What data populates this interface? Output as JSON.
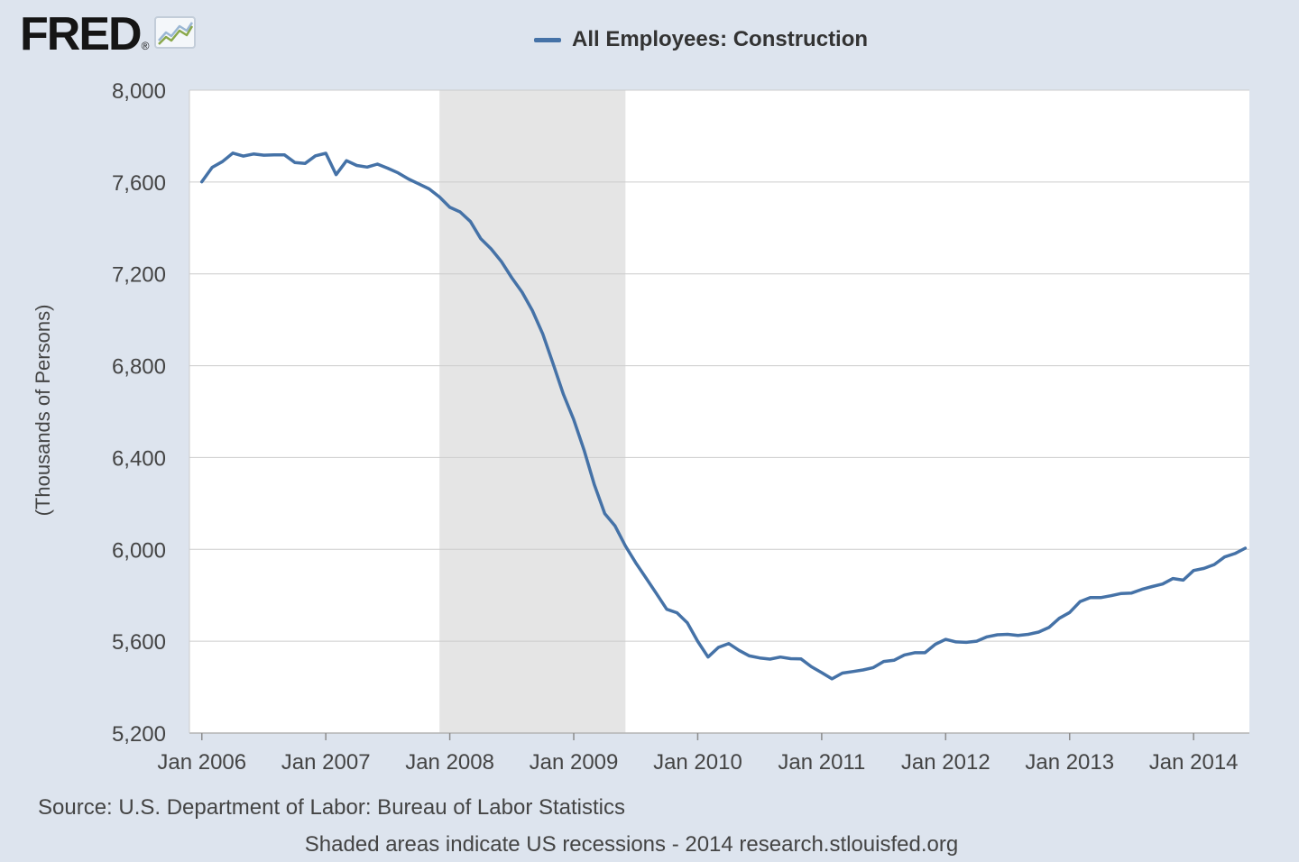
{
  "header": {
    "logo_text": "FRED",
    "logo_reg": "®",
    "logo_icon": "fred-sparkline-icon"
  },
  "legend": {
    "label": "All Employees: Construction",
    "swatch_color": "#4572a7"
  },
  "chart_data": {
    "type": "line",
    "title": "All Employees: Construction",
    "xlabel": "",
    "ylabel": "(Thousands of Persons)",
    "xlim": [
      2005.9,
      2014.45
    ],
    "ylim": [
      5200,
      8000
    ],
    "yticks": [
      5200,
      5600,
      6000,
      6400,
      6800,
      7200,
      7600,
      8000
    ],
    "ytick_labels": [
      "5,200",
      "5,600",
      "6,000",
      "6,400",
      "6,800",
      "7,200",
      "7,600",
      "8,000"
    ],
    "xticks": [
      2006,
      2007,
      2008,
      2009,
      2010,
      2011,
      2012,
      2013,
      2014
    ],
    "xtick_labels": [
      "Jan 2006",
      "Jan 2007",
      "Jan 2008",
      "Jan 2009",
      "Jan 2010",
      "Jan 2011",
      "Jan 2012",
      "Jan 2013",
      "Jan 2014"
    ],
    "grid": true,
    "legend_position": "top",
    "background_color": "#dde4ee",
    "plot_background": "#ffffff",
    "gridline_color": "#cccccc",
    "axis_color": "#b3b3b3",
    "tick_color": "#8c8c8c",
    "recession_color": "#e5e5e5",
    "recession_bands": [
      {
        "start": 2007.917,
        "end": 2009.417
      }
    ],
    "x_start": 2006.0,
    "x_interval": "monthly",
    "series": [
      {
        "name": "All Employees: Construction",
        "color": "#4572a7",
        "values": [
          7601,
          7664,
          7689,
          7726,
          7713,
          7722,
          7717,
          7718,
          7718,
          7685,
          7681,
          7714,
          7725,
          7632,
          7693,
          7672,
          7665,
          7678,
          7660,
          7640,
          7613,
          7592,
          7570,
          7535,
          7490,
          7470,
          7428,
          7353,
          7309,
          7253,
          7183,
          7120,
          7040,
          6938,
          6809,
          6675,
          6565,
          6432,
          6281,
          6156,
          6102,
          6015,
          5942,
          5875,
          5808,
          5739,
          5724,
          5680,
          5599,
          5531,
          5573,
          5590,
          5560,
          5536,
          5527,
          5522,
          5531,
          5524,
          5523,
          5489,
          5463,
          5436,
          5461,
          5468,
          5475,
          5485,
          5512,
          5517,
          5540,
          5550,
          5550,
          5587,
          5608,
          5597,
          5595,
          5600,
          5619,
          5628,
          5630,
          5625,
          5630,
          5640,
          5660,
          5700,
          5725,
          5772,
          5790,
          5790,
          5798,
          5808,
          5810,
          5826,
          5838,
          5849,
          5873,
          5866,
          5908,
          5917,
          5934,
          5967,
          5982,
          6005
        ]
      }
    ]
  },
  "footer": {
    "source": "Source: U.S. Department of Labor: Bureau of Labor Statistics",
    "note": "Shaded areas indicate US recessions - 2014 research.stlouisfed.org"
  }
}
